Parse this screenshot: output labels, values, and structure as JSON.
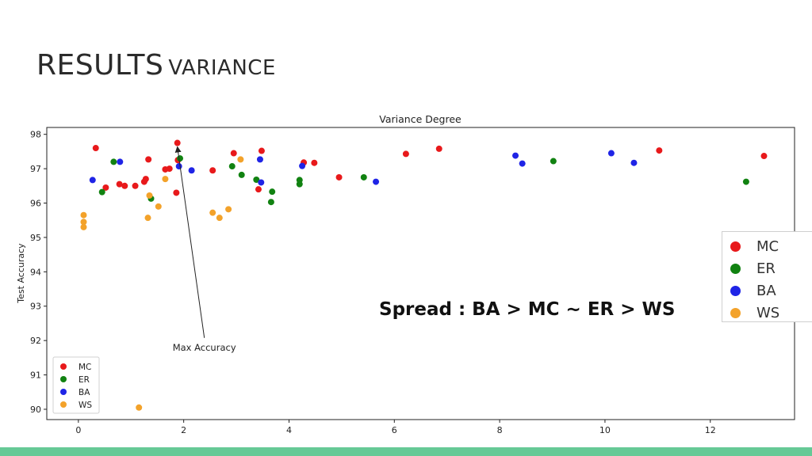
{
  "slide": {
    "title_main": "RESULTS",
    "title_sub": "VARIANCE",
    "note": "Spread : BA > MC ~ ER > WS"
  },
  "colors": {
    "MC": "#e8191b",
    "ER": "#118211",
    "BA": "#1f24e6",
    "WS": "#f3a22a",
    "accent_bar": "#66c996"
  },
  "big_legend": [
    {
      "label": "MC",
      "color_key": "MC"
    },
    {
      "label": "ER",
      "color_key": "ER"
    },
    {
      "label": "BA",
      "color_key": "BA"
    },
    {
      "label": "WS",
      "color_key": "WS"
    }
  ],
  "chart_data": {
    "type": "scatter",
    "title": "Variance Degree",
    "xlabel": "",
    "ylabel": "Test Accuracy",
    "xlim": [
      -0.6,
      13.6
    ],
    "ylim": [
      89.7,
      98.2
    ],
    "xticks": [
      0,
      2,
      4,
      6,
      8,
      10,
      12
    ],
    "yticks": [
      90,
      91,
      92,
      93,
      94,
      95,
      96,
      97,
      98
    ],
    "grid": false,
    "legend_position": "lower-left",
    "annotation": {
      "text": "Max Accuracy",
      "xy": [
        1.88,
        97.75
      ],
      "xytext": [
        1.85,
        91.8
      ]
    },
    "series": [
      {
        "name": "MC",
        "points": [
          [
            0.33,
            97.6
          ],
          [
            0.52,
            96.45
          ],
          [
            0.78,
            96.55
          ],
          [
            0.88,
            96.5
          ],
          [
            1.08,
            96.5
          ],
          [
            1.25,
            96.62
          ],
          [
            1.28,
            96.7
          ],
          [
            1.33,
            97.27
          ],
          [
            1.65,
            96.98
          ],
          [
            1.73,
            97.0
          ],
          [
            1.86,
            96.3
          ],
          [
            1.88,
            97.75
          ],
          [
            1.89,
            97.25
          ],
          [
            2.55,
            96.95
          ],
          [
            2.95,
            97.45
          ],
          [
            3.42,
            96.4
          ],
          [
            3.48,
            97.52
          ],
          [
            4.28,
            97.18
          ],
          [
            4.48,
            97.17
          ],
          [
            4.95,
            96.75
          ],
          [
            6.22,
            97.43
          ],
          [
            6.85,
            97.58
          ],
          [
            11.03,
            97.53
          ],
          [
            13.02,
            97.37
          ]
        ]
      },
      {
        "name": "ER",
        "points": [
          [
            0.45,
            96.32
          ],
          [
            0.67,
            97.2
          ],
          [
            1.38,
            96.13
          ],
          [
            1.93,
            97.3
          ],
          [
            2.92,
            97.07
          ],
          [
            3.1,
            96.82
          ],
          [
            3.38,
            96.68
          ],
          [
            3.66,
            96.03
          ],
          [
            3.68,
            96.33
          ],
          [
            4.2,
            96.55
          ],
          [
            4.2,
            96.67
          ],
          [
            5.42,
            96.75
          ],
          [
            9.02,
            97.22
          ],
          [
            12.68,
            96.62
          ]
        ]
      },
      {
        "name": "BA",
        "points": [
          [
            0.27,
            96.67
          ],
          [
            0.79,
            97.2
          ],
          [
            1.91,
            97.07
          ],
          [
            2.15,
            96.95
          ],
          [
            3.45,
            97.27
          ],
          [
            3.47,
            96.6
          ],
          [
            4.25,
            97.08
          ],
          [
            5.65,
            96.62
          ],
          [
            8.3,
            97.38
          ],
          [
            8.43,
            97.15
          ],
          [
            10.12,
            97.45
          ],
          [
            10.55,
            97.17
          ]
        ]
      },
      {
        "name": "WS",
        "points": [
          [
            0.1,
            95.65
          ],
          [
            0.1,
            95.45
          ],
          [
            0.1,
            95.3
          ],
          [
            1.15,
            90.05
          ],
          [
            1.32,
            95.57
          ],
          [
            1.35,
            96.22
          ],
          [
            1.52,
            95.9
          ],
          [
            1.65,
            96.7
          ],
          [
            2.55,
            95.72
          ],
          [
            2.68,
            95.57
          ],
          [
            2.85,
            95.82
          ],
          [
            3.08,
            97.27
          ]
        ]
      }
    ]
  }
}
